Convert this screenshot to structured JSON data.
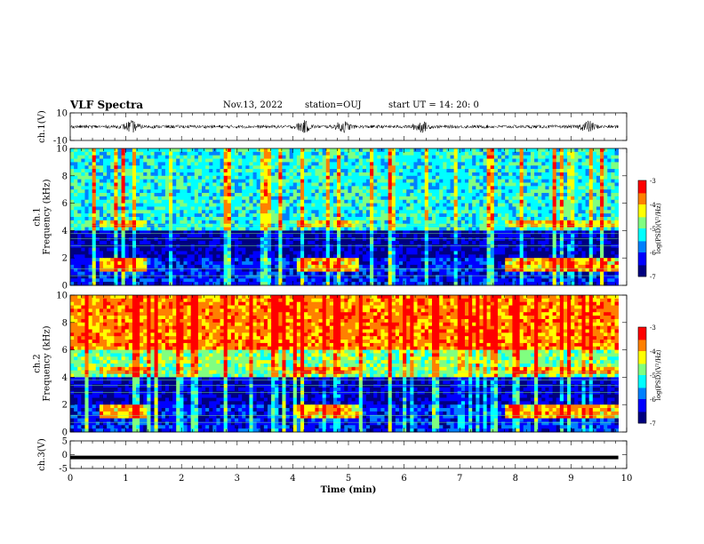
{
  "header": {
    "title": "VLF Spectra",
    "date": "Nov.13, 2022",
    "station": "station=OUJ",
    "start": "start  UT =   14: 20: 0"
  },
  "colors": {
    "colormap": [
      "#000080",
      "#0000ff",
      "#0080ff",
      "#00ffff",
      "#80ff80",
      "#ffff00",
      "#ff8000",
      "#ff0000",
      "#ffffff"
    ],
    "trace": "#000000"
  },
  "chart_data": [
    {
      "type": "line",
      "panel": "ch1-waveform",
      "ylabel": "ch.1(V)",
      "yticks": [
        "10",
        "-10"
      ],
      "ylim": [
        -10,
        10
      ],
      "xlim": [
        0,
        10
      ],
      "description_bursts_min": [
        1.1,
        4.2,
        4.9,
        6.3,
        9.3
      ],
      "amplitude_base_V": 1.2
    },
    {
      "type": "heatmap",
      "panel": "ch1-spectrogram",
      "ylabel": "ch.1\nFrequency (kHz)",
      "ylabel_lines": [
        "ch.1",
        "Frequency (kHz)"
      ],
      "yticks": [
        "0",
        "2",
        "4",
        "6",
        "8",
        "10"
      ],
      "ylim": [
        0,
        10
      ],
      "xlim": [
        0,
        10
      ],
      "colorbar": {
        "label": "log(PSD)(V²/Hz)",
        "ticks": [
          "-3",
          "-4",
          "-5",
          "-6",
          "-7"
        ],
        "range": [
          -7,
          -3
        ]
      },
      "bands": [
        {
          "f_min": 4.0,
          "f_max": 10.0,
          "level": -5.2
        },
        {
          "f_min": 2.0,
          "f_max": 4.0,
          "level": -6.6
        },
        {
          "f_min": 0.0,
          "f_max": 2.0,
          "level": -6.2
        }
      ],
      "hiss_intervals_min": [
        [
          0.5,
          1.35
        ],
        [
          4.1,
          5.2
        ],
        [
          7.8,
          9.9
        ]
      ],
      "hiss_band_kHz": [
        1.0,
        2.0
      ]
    },
    {
      "type": "heatmap",
      "panel": "ch2-spectrogram",
      "ylabel": "ch.2\nFrequency (kHz)",
      "ylabel_lines": [
        "ch.2",
        "Frequency (kHz)"
      ],
      "yticks": [
        "0",
        "2",
        "4",
        "6",
        "8",
        "10"
      ],
      "ylim": [
        0,
        10
      ],
      "xlim": [
        0,
        10
      ],
      "colorbar": {
        "label": "log(PSD)(V²/Hz)",
        "ticks": [
          "-3",
          "-4",
          "-5",
          "-6",
          "-7"
        ],
        "range": [
          -7,
          -3
        ]
      },
      "bands": [
        {
          "f_min": 6.0,
          "f_max": 10.0,
          "level": -3.8
        },
        {
          "f_min": 4.0,
          "f_max": 6.0,
          "level": -4.8
        },
        {
          "f_min": 2.0,
          "f_max": 4.0,
          "level": -6.5
        },
        {
          "f_min": 0.0,
          "f_max": 2.0,
          "level": -6.2
        }
      ],
      "hiss_intervals_min": [
        [
          0.5,
          1.35
        ],
        [
          4.1,
          5.2
        ],
        [
          7.8,
          9.9
        ]
      ],
      "hiss_band_kHz": [
        1.0,
        2.0
      ]
    },
    {
      "type": "line",
      "panel": "ch3-waveform",
      "ylabel": "ch.3(V)",
      "yticks": [
        "5",
        "0",
        "-5"
      ],
      "ylim": [
        -5,
        5
      ],
      "xlim": [
        0,
        10
      ],
      "value_V": -1.0
    }
  ],
  "xaxis": {
    "label": "Time  (min)",
    "ticks": [
      "0",
      "1",
      "2",
      "3",
      "4",
      "5",
      "6",
      "7",
      "8",
      "9",
      "10"
    ],
    "data_end_min": 9.85
  }
}
